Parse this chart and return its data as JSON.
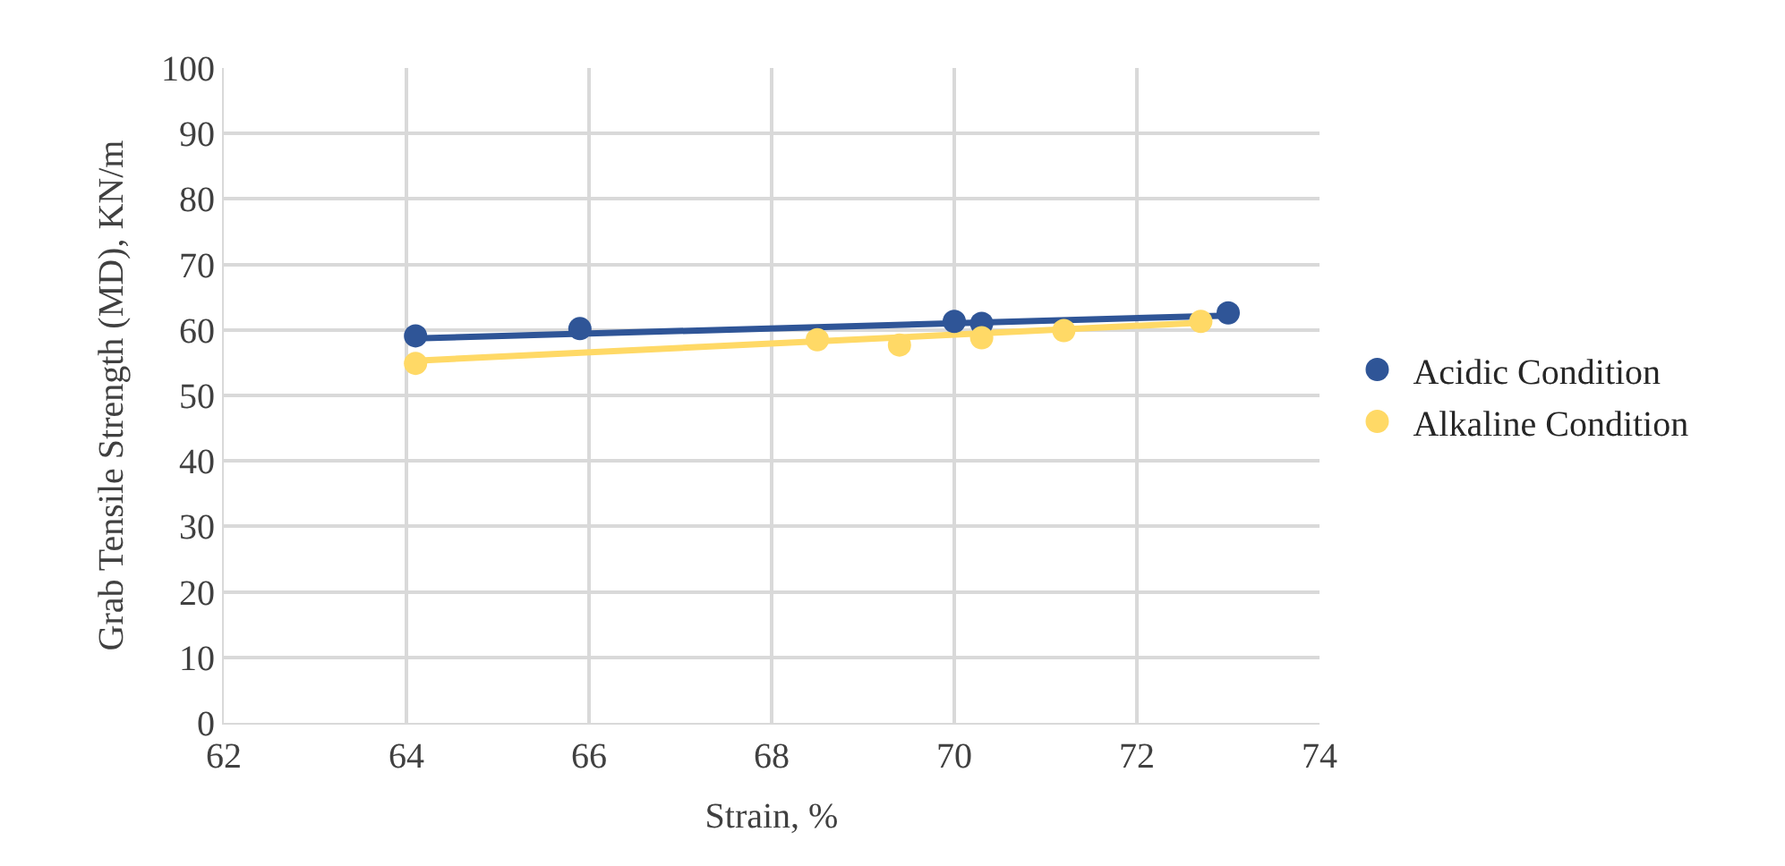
{
  "chart_data": {
    "type": "scatter",
    "xlabel": "Strain, %",
    "ylabel": "Grab Tensile Strength (MD), KN/m",
    "xlim": [
      62,
      74
    ],
    "xticks": [
      62,
      64,
      66,
      68,
      70,
      72,
      74
    ],
    "ylim": [
      0,
      100
    ],
    "yticks": [
      0,
      10,
      20,
      30,
      40,
      50,
      60,
      70,
      80,
      90,
      100
    ],
    "grid": true,
    "legend": "right",
    "series": [
      {
        "name": "Acidic Condition",
        "marker": "circle",
        "color": "#2f5597",
        "x": [
          64.1,
          65.9,
          70.0,
          70.3,
          73.0
        ],
        "values": [
          59.1,
          60.2,
          61.3,
          61.0,
          62.6
        ]
      },
      {
        "name": "Alkaline Condition",
        "marker": "circle",
        "color": "#ffd966",
        "x": [
          64.1,
          68.5,
          69.4,
          70.3,
          71.2,
          72.7
        ],
        "values": [
          54.9,
          58.5,
          57.7,
          58.8,
          59.9,
          61.3
        ]
      },
      {
        "type": "line",
        "color": "#2f5597",
        "x": [
          64.1,
          73.0
        ],
        "values": [
          58.7,
          62.2
        ]
      },
      {
        "type": "line",
        "color": "#ffd966",
        "x": [
          64.1,
          72.7
        ],
        "values": [
          55.3,
          61.1
        ]
      }
    ]
  }
}
